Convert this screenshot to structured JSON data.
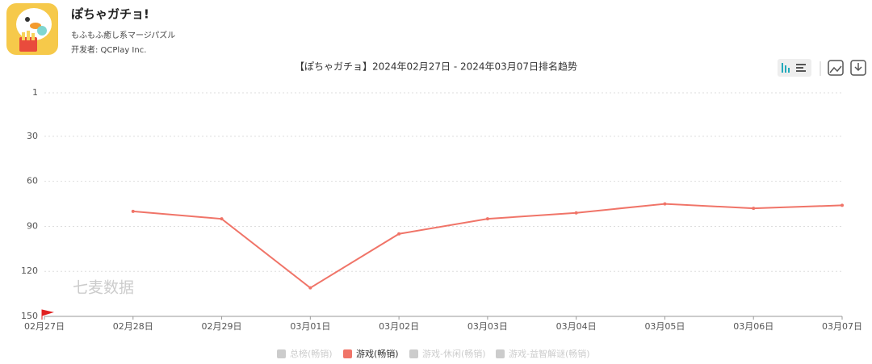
{
  "app": {
    "name": "ぽちゃガチョ!",
    "subtitle": "もふもふ癒し系マージパズル",
    "developer": "开发者: QCPlay Inc."
  },
  "chart_data": {
    "type": "line",
    "title": "【ぽちゃガチョ】2024年02月27日 - 2024年03月07日排名趋势",
    "watermark": "七麦数据",
    "categories": [
      "02月27日",
      "02月28日",
      "02月29日",
      "03月01日",
      "03月02日",
      "03月03日",
      "03月04日",
      "03月05日",
      "03月06日",
      "03月07日"
    ],
    "series": [
      {
        "name": "总榜(畅销)",
        "color": "#cccccc",
        "hidden": true
      },
      {
        "name": "游戏(畅销)",
        "color": "#f07468",
        "values": [
          null,
          80,
          85,
          131,
          95,
          85,
          81,
          75,
          78,
          76
        ]
      },
      {
        "name": "游戏-休闲(畅销)",
        "color": "#cccccc",
        "hidden": true
      },
      {
        "name": "游戏-益智解谜(畅销)",
        "color": "#cccccc",
        "hidden": true
      }
    ],
    "ylim": [
      150,
      1
    ],
    "yticks": [
      1,
      30,
      60,
      90,
      120,
      150
    ],
    "grid": true
  }
}
